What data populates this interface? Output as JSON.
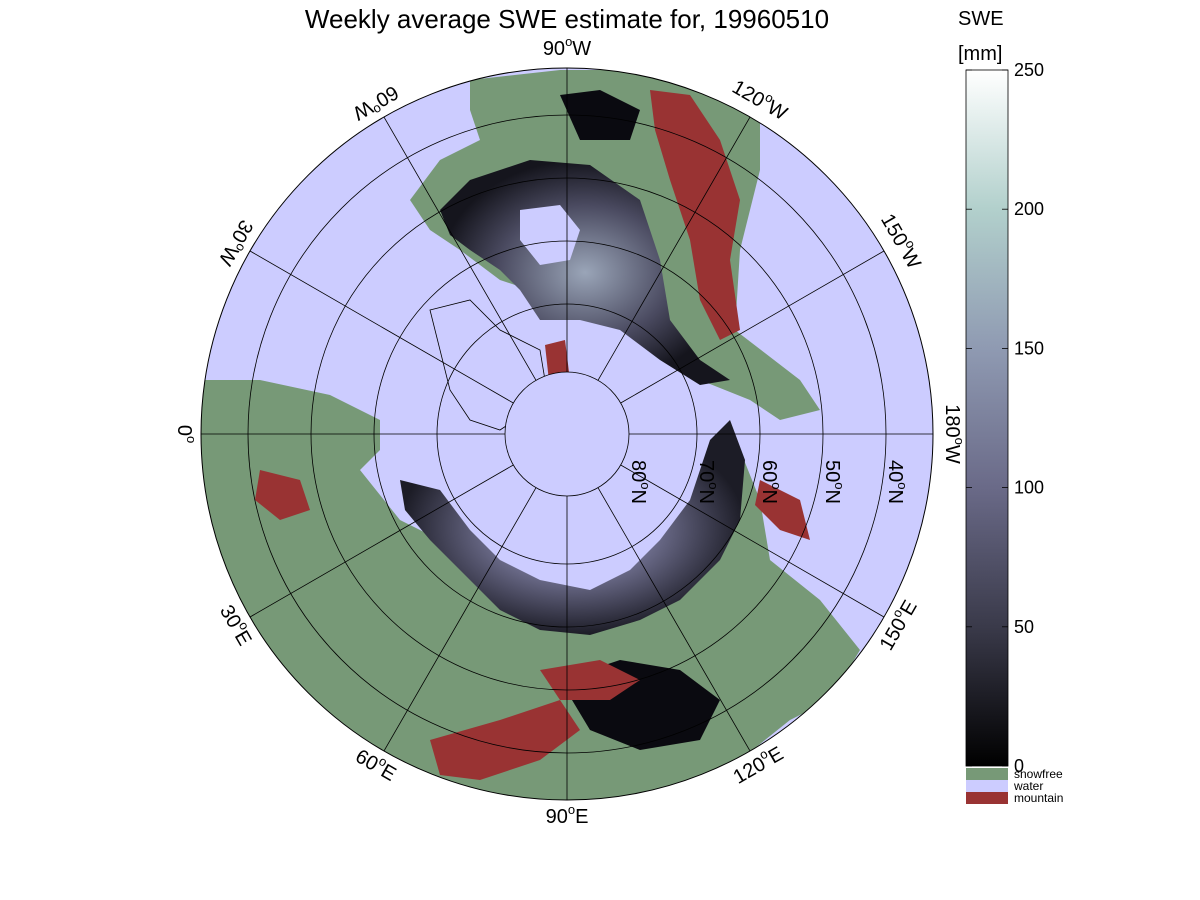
{
  "title": "Weekly average SWE estimate for, 19960510",
  "map": {
    "projection": "north-polar-stereographic",
    "colors": {
      "water": "#ccccff",
      "snowfree": "#779977",
      "mountain": "#993333",
      "grid": "#000000"
    },
    "longitude_labels": [
      {
        "deg": "90",
        "hemi": "W"
      },
      {
        "deg": "120",
        "hemi": "W"
      },
      {
        "deg": "150",
        "hemi": "W"
      },
      {
        "deg": "180",
        "hemi": "W"
      },
      {
        "deg": "150",
        "hemi": "E"
      },
      {
        "deg": "120",
        "hemi": "E"
      },
      {
        "deg": "90",
        "hemi": "E"
      },
      {
        "deg": "60",
        "hemi": "E"
      },
      {
        "deg": "30",
        "hemi": "E"
      },
      {
        "deg": "0",
        "hemi": ""
      },
      {
        "deg": "30",
        "hemi": "W"
      },
      {
        "deg": "60",
        "hemi": "W"
      }
    ],
    "latitude_labels": [
      {
        "deg": "80",
        "hemi": "N"
      },
      {
        "deg": "70",
        "hemi": "N"
      },
      {
        "deg": "60",
        "hemi": "N"
      },
      {
        "deg": "50",
        "hemi": "N"
      },
      {
        "deg": "40",
        "hemi": "N"
      }
    ]
  },
  "colorbar": {
    "label_line1": "SWE",
    "label_line2": "[mm]",
    "min": 0,
    "max": 250,
    "ticks": [
      "0",
      "50",
      "100",
      "150",
      "200",
      "250"
    ],
    "gradient": [
      "#000000",
      "#3a3a4a",
      "#6a6a88",
      "#8f9ab2",
      "#b2d0cc",
      "#ffffff"
    ]
  },
  "legend": [
    {
      "label": "snowfree",
      "color": "#779977"
    },
    {
      "label": "water",
      "color": "#ccccff"
    },
    {
      "label": "mountain",
      "color": "#993333"
    }
  ]
}
